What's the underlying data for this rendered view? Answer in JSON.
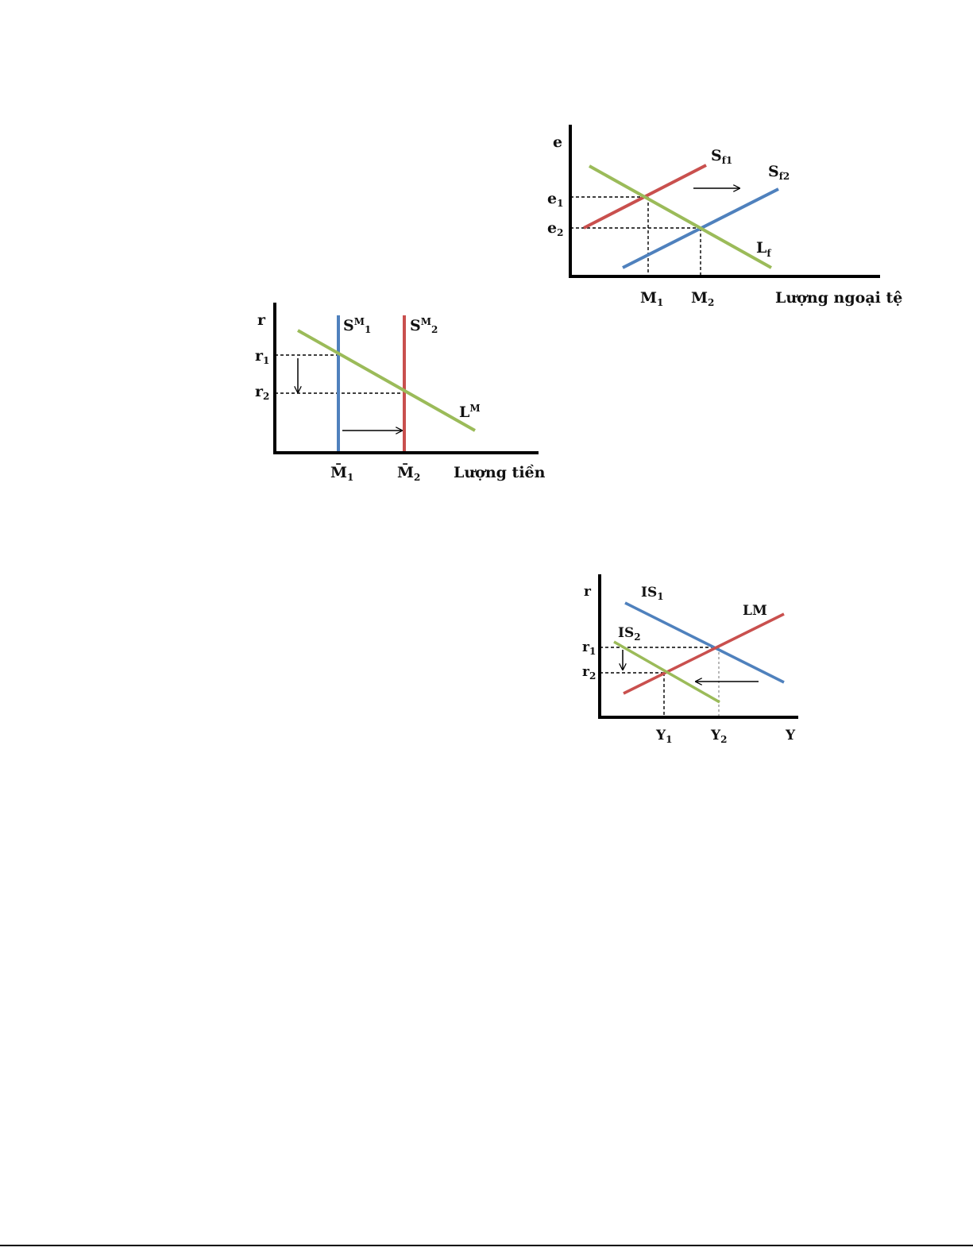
{
  "colors": {
    "red": "#c9504e",
    "blue": "#4f81bd",
    "green": "#9bbb59",
    "axis": "#000000"
  },
  "diagrams": {
    "forex": {
      "y_axis_label": "e",
      "x_axis_label": "Lượng ngoại tệ",
      "e1": {
        "base": "e",
        "sub": "1"
      },
      "e2": {
        "base": "e",
        "sub": "2"
      },
      "m1": {
        "base": "M",
        "sub": "1"
      },
      "m2": {
        "base": "M",
        "sub": "2"
      },
      "sf1": {
        "base": "S",
        "sub": "f1"
      },
      "sf2": {
        "base": "S",
        "sub": "f2"
      },
      "lf": {
        "base": "L",
        "sub": "f"
      },
      "shift_arrow": "right"
    },
    "money": {
      "y_axis_label": "r",
      "x_axis_label": "Lượng tiền",
      "r1": {
        "base": "r",
        "sub": "1"
      },
      "r2": {
        "base": "r",
        "sub": "2"
      },
      "m1": {
        "base": "M̄",
        "sub": "1"
      },
      "m2": {
        "base": "M̄",
        "sub": "2"
      },
      "sm1": {
        "base": "S",
        "sup": "M",
        "sub": "1"
      },
      "sm2": {
        "base": "S",
        "sup": "M",
        "sub": "2"
      },
      "lm": {
        "base": "L",
        "sup": "M"
      },
      "shift_arrow": "right",
      "rate_arrow": "down"
    },
    "islm": {
      "y_axis_label": "r",
      "x_axis_label": "Y",
      "r1": {
        "base": "r",
        "sub": "1"
      },
      "r2": {
        "base": "r",
        "sub": "2"
      },
      "y1": {
        "base": "Y",
        "sub": "1"
      },
      "y2": {
        "base": "Y",
        "sub": "2"
      },
      "is1": {
        "base": "IS",
        "sub": "1"
      },
      "is2": {
        "base": "IS",
        "sub": "2"
      },
      "lm": "LM",
      "shift_arrow": "left",
      "rate_arrow": "down"
    }
  }
}
